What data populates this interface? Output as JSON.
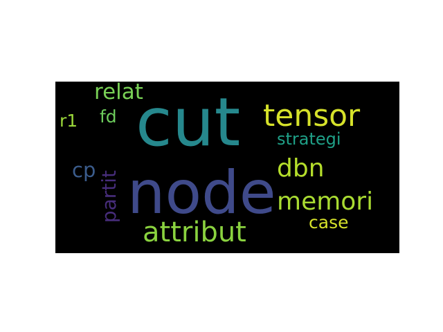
{
  "wordcloud": {
    "background": "#000000",
    "words": [
      {
        "text": "cut",
        "color": "#26888d"
      },
      {
        "text": "node",
        "color": "#3f4a8a"
      },
      {
        "text": "tensor",
        "color": "#d6e22a"
      },
      {
        "text": "relat",
        "color": "#79d056"
      },
      {
        "text": "strategi",
        "color": "#1fa087"
      },
      {
        "text": "dbn",
        "color": "#b5de2b"
      },
      {
        "text": "memori",
        "color": "#a9db32"
      },
      {
        "text": "attribut",
        "color": "#8ad23f"
      },
      {
        "text": "case",
        "color": "#d6e22a"
      },
      {
        "text": "r1",
        "color": "#9bd83a"
      },
      {
        "text": "fd",
        "color": "#6dcc5c"
      },
      {
        "text": "cp",
        "color": "#3b5c8c"
      },
      {
        "text": "partit",
        "color": "#472d7b"
      }
    ]
  }
}
